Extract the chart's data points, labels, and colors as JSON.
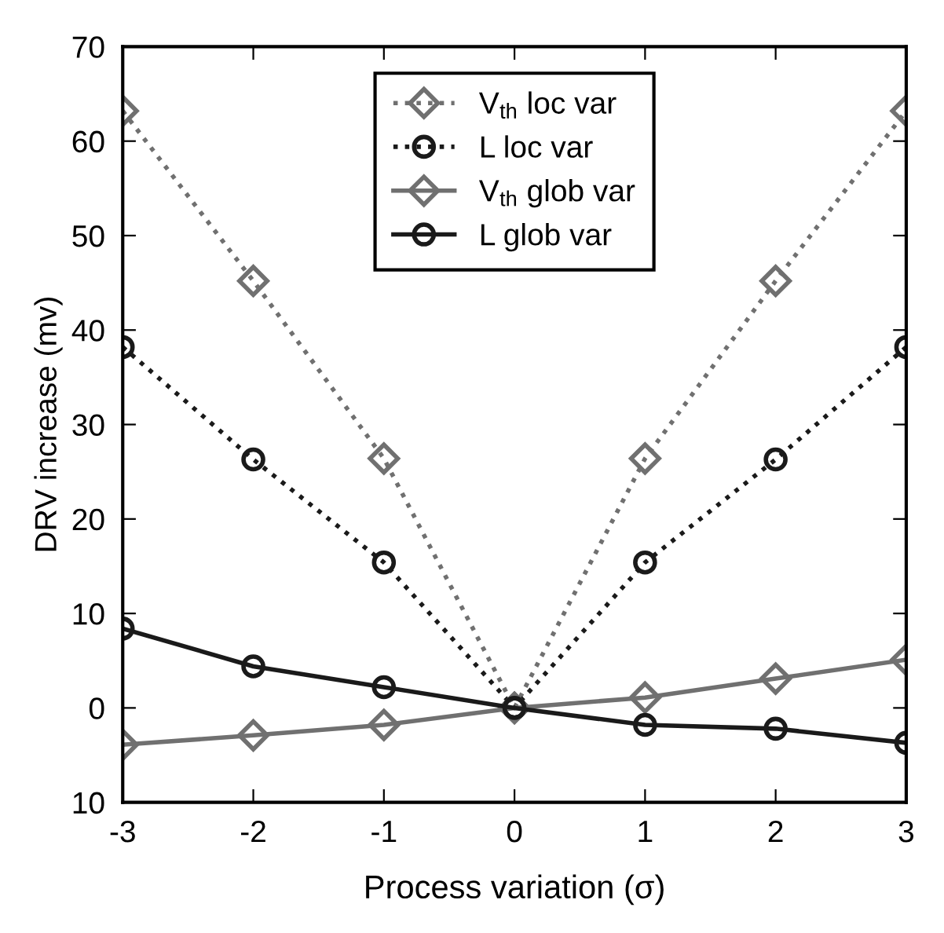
{
  "chart_data": {
    "type": "line",
    "xlabel": "Process variation (σ)",
    "ylabel": "DRV increase (mv)",
    "x": [
      -3,
      -2,
      -1,
      0,
      1,
      2,
      3
    ],
    "xlim": [
      -3,
      3
    ],
    "xticks": [
      -3,
      -2,
      -1,
      0,
      1,
      2,
      3
    ],
    "ylim": [
      -10,
      70
    ],
    "yticks": [
      {
        "value": -10,
        "label": "10"
      },
      0,
      10,
      20,
      30,
      40,
      50,
      60,
      70
    ],
    "grid": false,
    "legend": "top",
    "series": [
      {
        "name": "V$_{th}$ loc var",
        "color": "#707070",
        "marker": "diamond",
        "line_style": "dotted",
        "values": [
          63.2,
          45.2,
          26.4,
          0,
          26.4,
          45.2,
          63.2
        ]
      },
      {
        "name": "L loc var",
        "color": "#1a1a1a",
        "marker": "circle",
        "line_style": "dotted",
        "values": [
          38.2,
          26.3,
          15.4,
          0,
          15.4,
          26.3,
          38.2
        ]
      },
      {
        "name": "V$_{th}$ glob var",
        "color": "#707070",
        "marker": "diamond",
        "line_style": "solid",
        "values": [
          -3.9,
          -2.9,
          -1.8,
          0,
          1.1,
          3.1,
          5.1
        ]
      },
      {
        "name": "L glob var",
        "color": "#1a1a1a",
        "marker": "circle",
        "line_style": "solid",
        "values": [
          8.4,
          4.4,
          2.2,
          0,
          -1.8,
          -2.2,
          -3.7
        ]
      }
    ]
  }
}
